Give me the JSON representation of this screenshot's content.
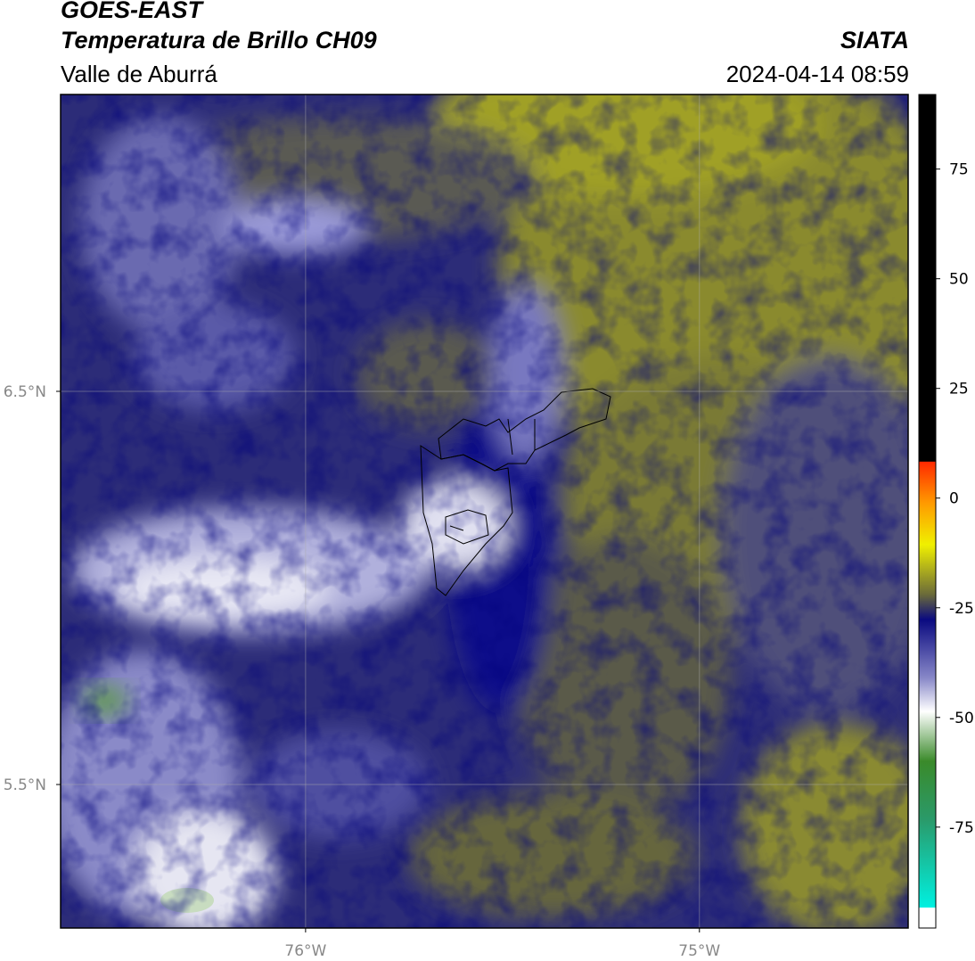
{
  "header": {
    "title": "GOES-EAST",
    "subtitle": "Temperatura de Brillo CH09",
    "region": "Valle de Aburrá",
    "source": "SIATA",
    "timestamp": "2024-04-14 08:59"
  },
  "map": {
    "xlim": [
      -76.622,
      -74.47
    ],
    "ylim": [
      5.135,
      7.255
    ],
    "xticks": [
      {
        "value": -76,
        "label": "76°W"
      },
      {
        "value": -75,
        "label": "75°W"
      }
    ],
    "yticks": [
      {
        "value": 6.5,
        "label": "6.5°N"
      },
      {
        "value": 5.5,
        "label": "5.5°N"
      }
    ],
    "grid": true
  },
  "colorbar": {
    "lim": [
      -98,
      92
    ],
    "ticks": [
      75,
      50,
      25,
      0,
      -25,
      -50,
      -75
    ]
  }
}
